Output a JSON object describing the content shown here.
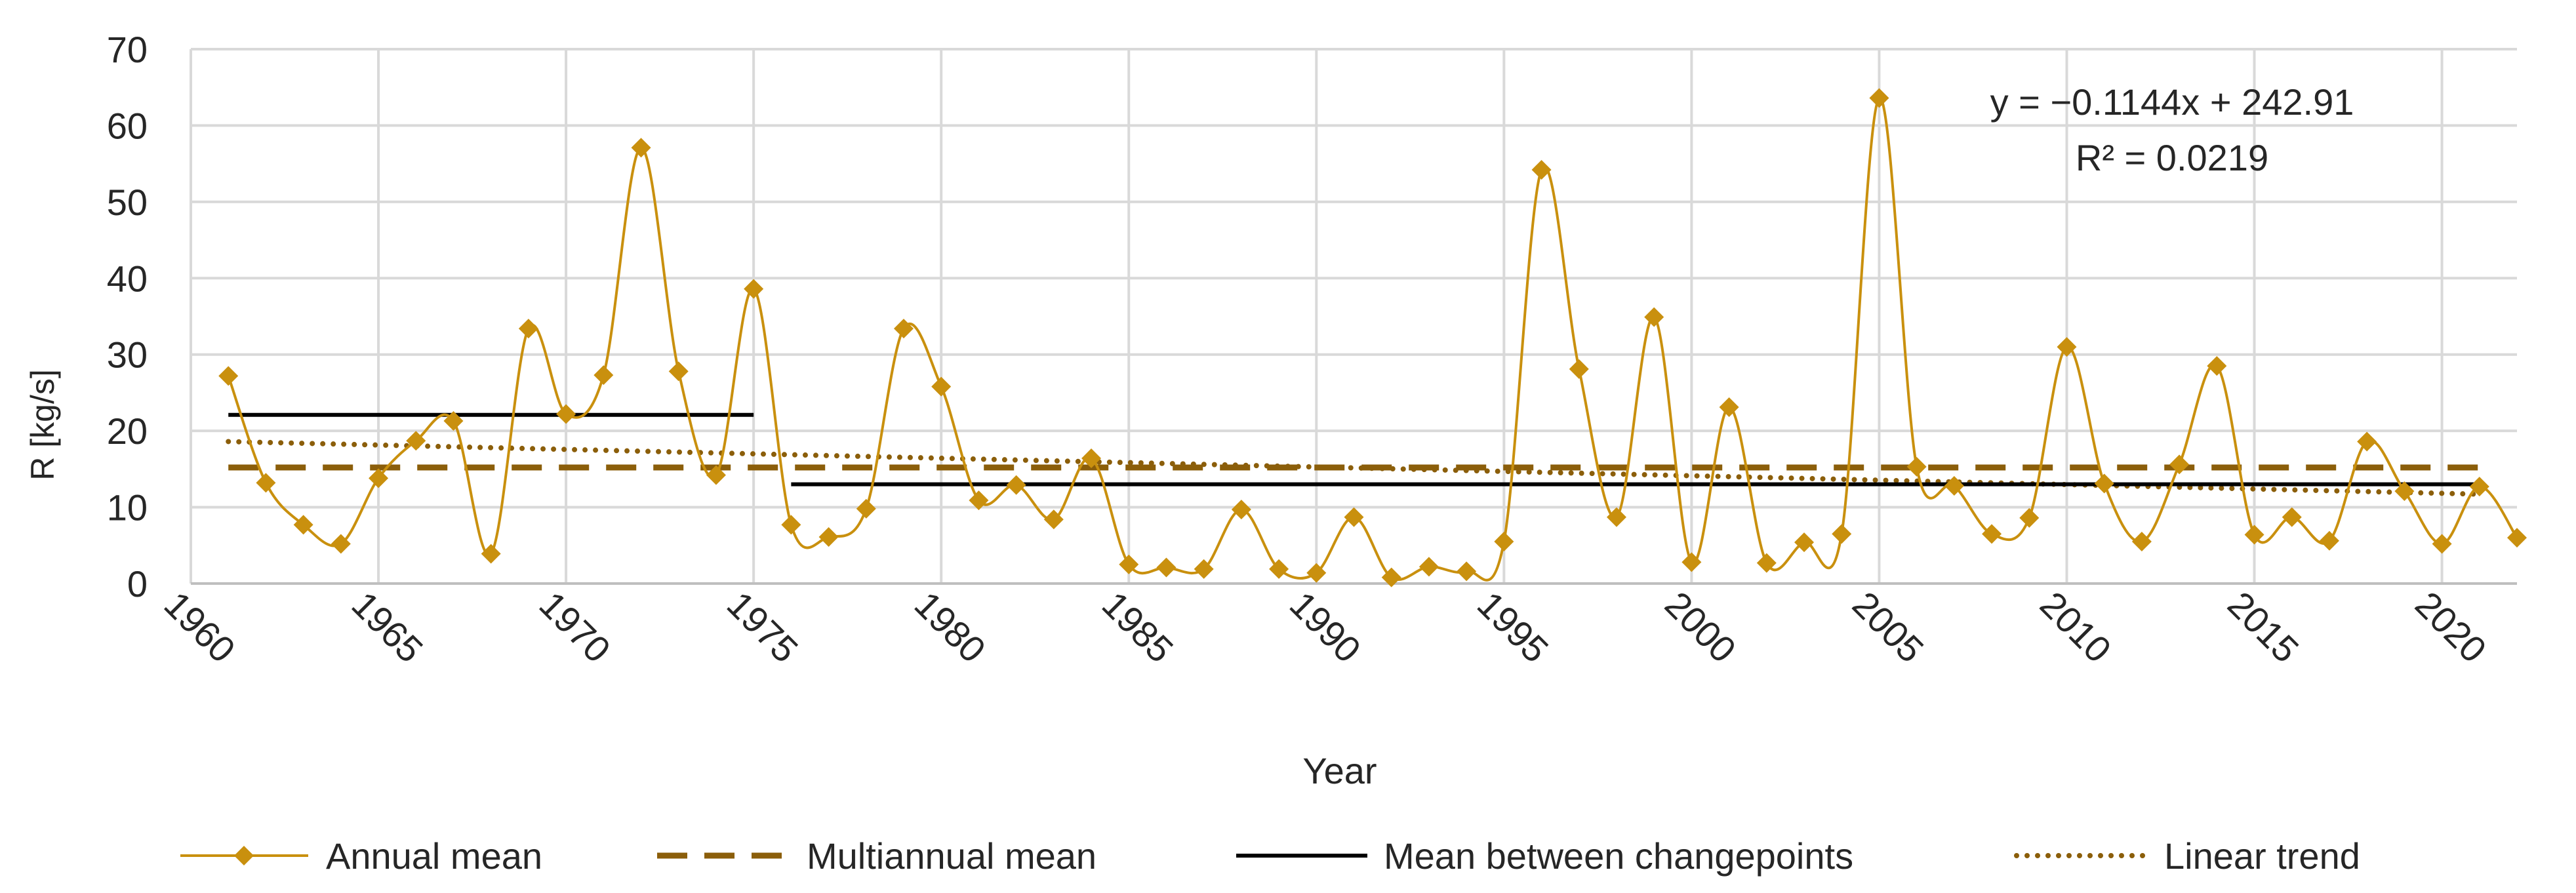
{
  "chart_data": {
    "type": "line",
    "xlabel": "Year",
    "ylabel": "R [kg/s]",
    "xlim": [
      1960,
      2022
    ],
    "ylim": [
      0,
      70
    ],
    "y_ticks": [
      0,
      10,
      20,
      30,
      40,
      50,
      60,
      70
    ],
    "x_ticks": [
      1960,
      1965,
      1970,
      1975,
      1980,
      1985,
      1990,
      1995,
      2000,
      2005,
      2010,
      2015,
      2020
    ],
    "grid": true,
    "legend_position": "bottom",
    "annotation": {
      "equation": "y = −0.1144x + 242.91",
      "r2": "R² = 0.0219"
    },
    "series": [
      {
        "name": "Annual mean",
        "style": "line-diamond",
        "color": "#C9900E",
        "x": [
          1961,
          1962,
          1963,
          1964,
          1965,
          1966,
          1967,
          1968,
          1969,
          1970,
          1971,
          1972,
          1973,
          1974,
          1975,
          1976,
          1977,
          1978,
          1979,
          1980,
          1981,
          1982,
          1983,
          1984,
          1985,
          1986,
          1987,
          1988,
          1989,
          1990,
          1991,
          1992,
          1993,
          1994,
          1995,
          1996,
          1997,
          1998,
          1999,
          2000,
          2001,
          2002,
          2003,
          2004,
          2005,
          2006,
          2007,
          2008,
          2009,
          2010,
          2011,
          2012,
          2013,
          2014,
          2015,
          2016,
          2017,
          2018,
          2019,
          2020,
          2021,
          2022
        ],
        "y": [
          27.2,
          13.2,
          7.7,
          5.2,
          13.8,
          18.7,
          21.3,
          3.9,
          33.4,
          22.2,
          27.3,
          57.1,
          27.8,
          14.2,
          38.6,
          7.7,
          6.1,
          9.8,
          33.4,
          25.8,
          10.9,
          12.9,
          8.4,
          16.4,
          2.5,
          2.1,
          1.9,
          9.7,
          1.9,
          1.4,
          8.7,
          0.8,
          2.2,
          1.6,
          5.5,
          54.2,
          28.1,
          8.7,
          34.9,
          2.8,
          23.1,
          2.7,
          5.4,
          6.5,
          63.6,
          15.3,
          12.8,
          6.5,
          8.6,
          31.0,
          13.1,
          5.5,
          15.6,
          28.5,
          6.4,
          8.7,
          5.6,
          18.6,
          12.1,
          5.2,
          12.7,
          6.0
        ]
      },
      {
        "name": "Multiannual mean",
        "style": "dashed",
        "color": "#8B5E0A",
        "x": [
          1961,
          2021
        ],
        "y": [
          15.2,
          15.2
        ]
      },
      {
        "name": "Mean between changepoints",
        "style": "solid",
        "color": "#000000",
        "segments": [
          {
            "x": [
              1961,
              1975
            ],
            "y": [
              22.1,
              22.1
            ]
          },
          {
            "x": [
              1976,
              2021
            ],
            "y": [
              13.0,
              13.0
            ]
          }
        ]
      },
      {
        "name": "Linear trend",
        "style": "dotted",
        "color": "#8B5E0A",
        "x": [
          1961,
          2021
        ],
        "y": [
          18.6,
          11.7
        ]
      }
    ]
  }
}
